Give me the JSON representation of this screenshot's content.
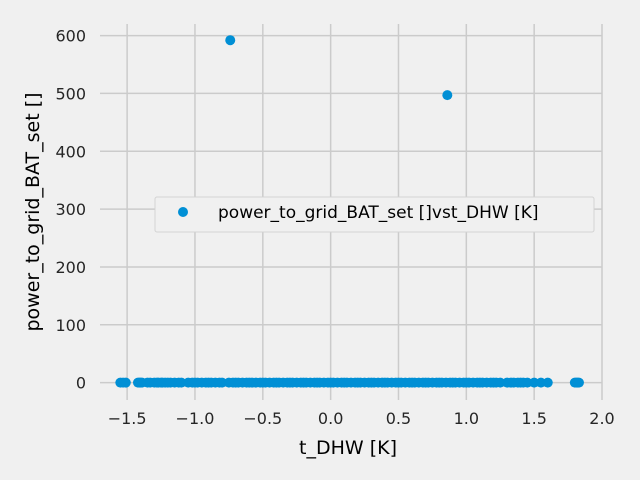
{
  "chart_data": {
    "type": "scatter",
    "title": "",
    "xlabel": "t_DHW [K]",
    "ylabel": "power_to_grid_BAT_set []",
    "xlim": [
      -1.7,
      2.0
    ],
    "ylim": [
      -30,
      620
    ],
    "x_ticks": [
      -1.5,
      -1.0,
      -0.5,
      0.0,
      0.5,
      1.0,
      1.5,
      2.0
    ],
    "x_tick_labels": [
      "−1.5",
      "−1.0",
      "−0.5",
      "0.0",
      "0.5",
      "1.0",
      "1.5",
      "2.0"
    ],
    "y_ticks": [
      0,
      100,
      200,
      300,
      400,
      500,
      600
    ],
    "y_tick_labels": [
      "0",
      "100",
      "200",
      "300",
      "400",
      "500",
      "600"
    ],
    "grid": true,
    "legend_position": "center-right",
    "series": [
      {
        "name": "power_to_grid_BAT_set []vst_DHW [K]",
        "color": "#008fd5",
        "marker": "circle",
        "x": [
          -1.55,
          -1.53,
          -1.51,
          -1.42,
          -1.41,
          -1.4,
          -1.39,
          -1.35,
          -1.33,
          -1.3,
          -1.28,
          -1.27,
          -1.25,
          -1.24,
          -1.22,
          -1.2,
          -1.18,
          -1.15,
          -1.12,
          -1.1,
          -1.05,
          -1.02,
          -1.0,
          -0.98,
          -0.95,
          -0.92,
          -0.9,
          -0.88,
          -0.85,
          -0.82,
          -0.8,
          -0.75,
          -0.72,
          -0.7,
          -0.68,
          -0.65,
          -0.62,
          -0.6,
          -0.58,
          -0.55,
          -0.52,
          -0.5,
          -0.48,
          -0.45,
          -0.42,
          -0.4,
          -0.38,
          -0.35,
          -0.32,
          -0.3,
          -0.28,
          -0.25,
          -0.22,
          -0.2,
          -0.18,
          -0.15,
          -0.12,
          -0.1,
          -0.08,
          -0.05,
          -0.02,
          0.0,
          0.02,
          0.05,
          0.08,
          0.1,
          0.12,
          0.15,
          0.18,
          0.2,
          0.22,
          0.25,
          0.28,
          0.3,
          0.32,
          0.35,
          0.38,
          0.4,
          0.42,
          0.45,
          0.48,
          0.5,
          0.52,
          0.55,
          0.58,
          0.6,
          0.62,
          0.65,
          0.68,
          0.7,
          0.72,
          0.75,
          0.78,
          0.8,
          0.82,
          0.85,
          0.88,
          0.9,
          0.92,
          0.95,
          0.98,
          1.0,
          1.02,
          1.05,
          1.08,
          1.1,
          1.12,
          1.15,
          1.18,
          1.2,
          1.22,
          1.25,
          1.3,
          1.33,
          1.35,
          1.38,
          1.4,
          1.42,
          1.45,
          1.5,
          1.55,
          1.6,
          1.8,
          1.81,
          1.82,
          1.83,
          -0.74,
          0.86
        ],
        "y": [
          0,
          0,
          0,
          0,
          0,
          0,
          0,
          0,
          0,
          0,
          0,
          0,
          0,
          0,
          0,
          0,
          0,
          0,
          0,
          0,
          0,
          0,
          0,
          0,
          0,
          0,
          0,
          0,
          0,
          0,
          0,
          0,
          0,
          0,
          0,
          0,
          0,
          0,
          0,
          0,
          0,
          0,
          0,
          0,
          0,
          0,
          0,
          0,
          0,
          0,
          0,
          0,
          0,
          0,
          0,
          0,
          0,
          0,
          0,
          0,
          0,
          0,
          0,
          0,
          0,
          0,
          0,
          0,
          0,
          0,
          0,
          0,
          0,
          0,
          0,
          0,
          0,
          0,
          0,
          0,
          0,
          0,
          0,
          0,
          0,
          0,
          0,
          0,
          0,
          0,
          0,
          0,
          0,
          0,
          0,
          0,
          0,
          0,
          0,
          0,
          0,
          0,
          0,
          0,
          0,
          0,
          0,
          0,
          0,
          0,
          0,
          0,
          0,
          0,
          0,
          0,
          0,
          0,
          0,
          0,
          0,
          0,
          0,
          0,
          0,
          0,
          592,
          497
        ]
      }
    ]
  }
}
